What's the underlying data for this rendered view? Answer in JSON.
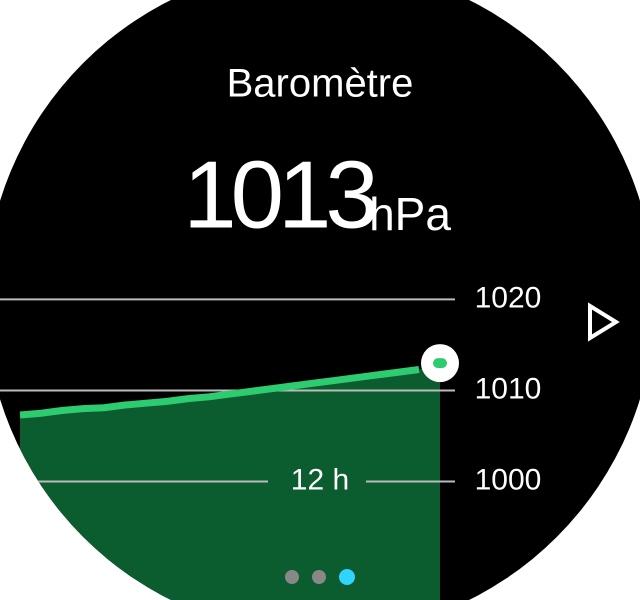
{
  "header": {
    "title": "Baromètre",
    "value": "1013",
    "unit": "hPa"
  },
  "chart_data": {
    "type": "area",
    "values": [
      1007.3,
      1007.5,
      1007.8,
      1008.0,
      1008.1,
      1008.4,
      1008.6,
      1008.8,
      1009.1,
      1009.3,
      1009.6,
      1009.9,
      1010.2,
      1010.5,
      1010.8,
      1011.1,
      1011.4,
      1011.7,
      1012.0,
      1012.3,
      1013
    ],
    "color": "#2ecc71",
    "fill": "#0b5c2e",
    "ylim": [
      987,
      1023
    ],
    "yticks": [
      1000,
      1010,
      1020
    ],
    "grid": true,
    "annotation": "12 h"
  }
}
